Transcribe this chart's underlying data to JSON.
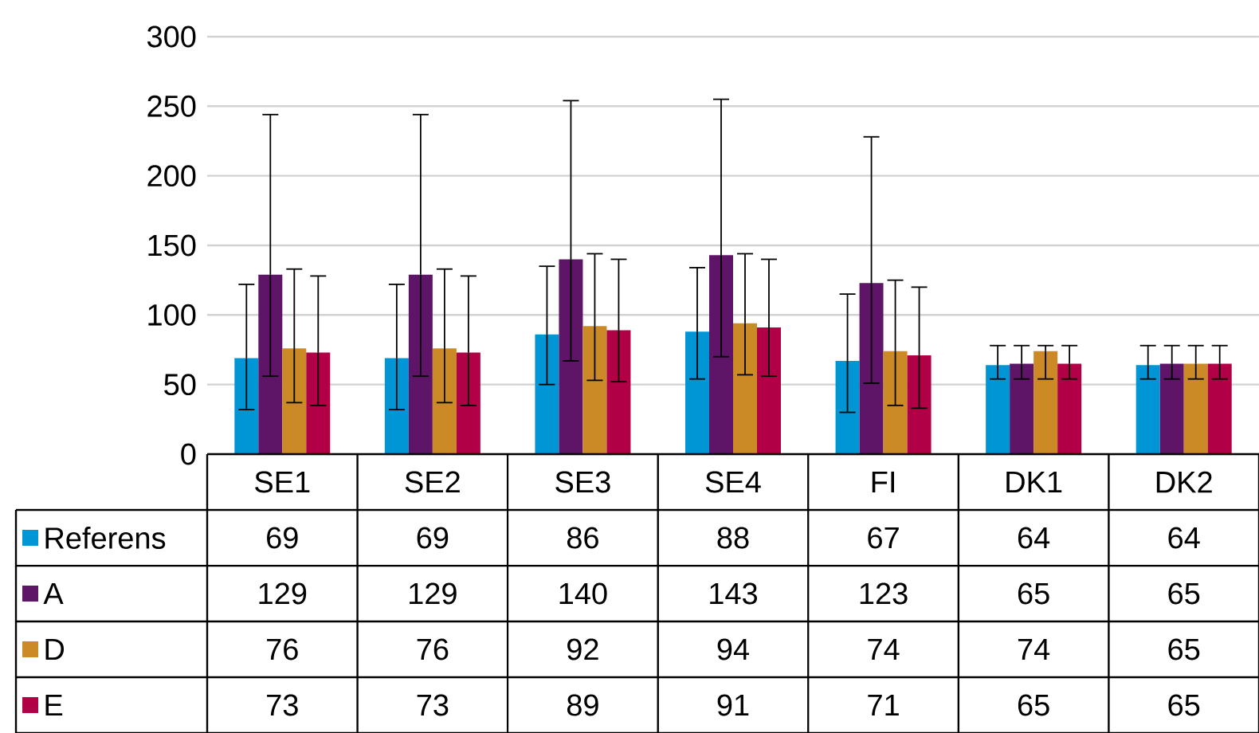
{
  "chart_data": {
    "type": "bar",
    "categories": [
      "SE1",
      "SE2",
      "SE3",
      "SE4",
      "FI",
      "DK1",
      "DK2"
    ],
    "series": [
      {
        "name": "Referens",
        "color": "#0096d6",
        "values": [
          69,
          69,
          86,
          88,
          67,
          64,
          64
        ],
        "errors": [
          [
            32,
            122
          ],
          [
            32,
            122
          ],
          [
            50,
            135
          ],
          [
            54,
            134
          ],
          [
            30,
            115
          ],
          [
            54,
            78
          ],
          [
            54,
            78
          ]
        ]
      },
      {
        "name": "A",
        "color": "#5e1568",
        "values": [
          129,
          129,
          140,
          143,
          123,
          65,
          65
        ],
        "errors": [
          [
            56,
            244
          ],
          [
            56,
            244
          ],
          [
            67,
            254
          ],
          [
            70,
            255
          ],
          [
            51,
            228
          ],
          [
            54,
            78
          ],
          [
            54,
            78
          ]
        ]
      },
      {
        "name": "D",
        "color": "#cc8a27",
        "values": [
          76,
          76,
          92,
          94,
          74,
          74,
          65
        ],
        "errors": [
          [
            37,
            133
          ],
          [
            37,
            133
          ],
          [
            53,
            144
          ],
          [
            57,
            144
          ],
          [
            35,
            125
          ],
          [
            54,
            78
          ],
          [
            54,
            78
          ]
        ]
      },
      {
        "name": "E",
        "color": "#b10045",
        "values": [
          73,
          73,
          89,
          91,
          71,
          65,
          65
        ],
        "errors": [
          [
            35,
            128
          ],
          [
            35,
            128
          ],
          [
            52,
            140
          ],
          [
            56,
            140
          ],
          [
            33,
            120
          ],
          [
            54,
            78
          ],
          [
            54,
            78
          ]
        ]
      }
    ],
    "ylim": [
      0,
      300
    ],
    "yticks": [
      0,
      50,
      100,
      150,
      200,
      250,
      300
    ],
    "grid": "y",
    "legend": "bottom",
    "data_labels": true
  }
}
